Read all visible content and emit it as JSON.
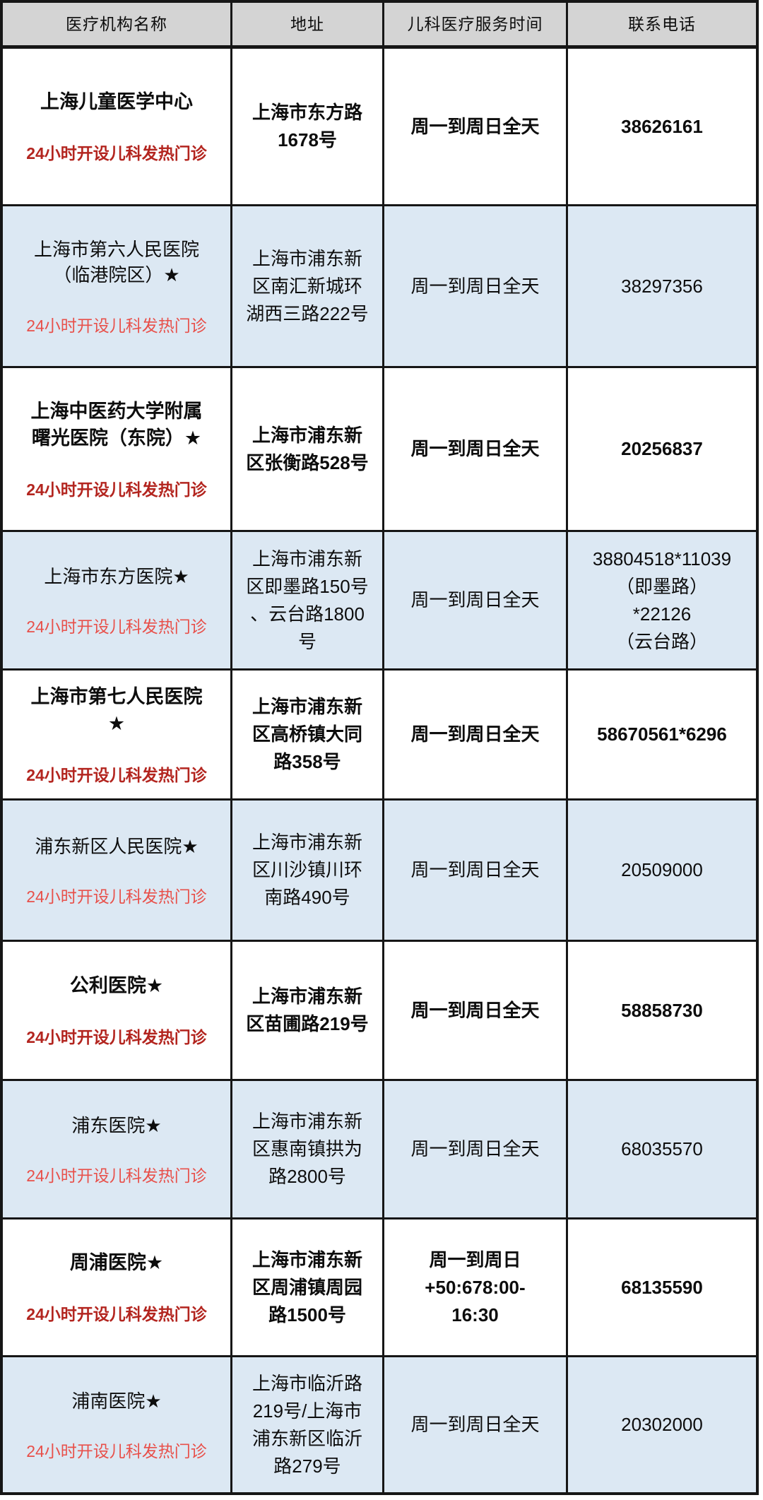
{
  "table": {
    "headers": [
      "医疗机构名称",
      "地址",
      "儿科医疗服务时间",
      "联系电话"
    ],
    "rows": [
      {
        "name": "上海儿童医学中心",
        "note": "24小时开设儿科发热门诊",
        "address": "上海市东方路\n1678号",
        "hours": "周一到周日全天",
        "phone": "38626161"
      },
      {
        "name": "上海市第六人民医院\n（临港院区）★",
        "note": "24小时开设儿科发热门诊",
        "address": "上海市浦东新\n区南汇新城环\n湖西三路222号",
        "hours": "周一到周日全天",
        "phone": "38297356"
      },
      {
        "name": "上海中医药大学附属\n曙光医院（东院）★",
        "note": "24小时开设儿科发热门诊",
        "address": "上海市浦东新\n区张衡路528号",
        "hours": "周一到周日全天",
        "phone": "20256837"
      },
      {
        "name": "上海市东方医院★",
        "note": "24小时开设儿科发热门诊",
        "address": "上海市浦东新\n区即墨路150号\n、云台路1800\n号",
        "hours": "周一到周日全天",
        "phone": "38804518*11039\n（即墨路）\n*22126\n（云台路）"
      },
      {
        "name": "上海市第七人民医院\n★",
        "note": "24小时开设儿科发热门诊",
        "address": "上海市浦东新\n区高桥镇大同\n路358号",
        "hours": "周一到周日全天",
        "phone": "58670561*6296"
      },
      {
        "name": "浦东新区人民医院★",
        "note": "24小时开设儿科发热门诊",
        "address": "上海市浦东新\n区川沙镇川环\n南路490号",
        "hours": "周一到周日全天",
        "phone": "20509000"
      },
      {
        "name": "公利医院★",
        "note": "24小时开设儿科发热门诊",
        "address": "上海市浦东新\n区苗圃路219号",
        "hours": "周一到周日全天",
        "phone": "58858730"
      },
      {
        "name": "浦东医院★",
        "note": "24小时开设儿科发热门诊",
        "address": "上海市浦东新\n区惠南镇拱为\n路2800号",
        "hours": "周一到周日全天",
        "phone": "68035570"
      },
      {
        "name": "周浦医院★",
        "note": "24小时开设儿科发热门诊",
        "address": "上海市浦东新\n区周浦镇周园\n路1500号",
        "hours": "周一到周日\n+50:678:00-\n16:30",
        "phone": "68135590"
      },
      {
        "name": "浦南医院★",
        "note": "24小时开设儿科发热门诊",
        "address": "上海市临沂路\n219号/上海市\n浦东新区临沂\n路279号",
        "hours": "周一到周日全天",
        "phone": "20302000"
      }
    ]
  },
  "colors": {
    "header_bg": "#d4d4d4",
    "row_blue_bg": "#dce8f3",
    "row_white_bg": "#ffffff",
    "note_red_bold": "#b3251f",
    "note_red_light": "#e8504a",
    "border": "#161616",
    "text": "#0d0d0d"
  }
}
